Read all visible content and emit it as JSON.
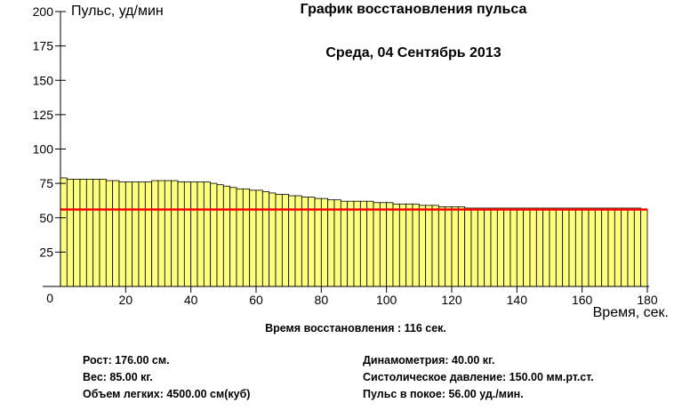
{
  "chart_data": {
    "type": "bar",
    "title": "График восстановления пульса",
    "subtitle": "Среда, 04 Сентябрь 2013",
    "ylabel": "Пульс, уд/мин",
    "xlabel": "Время, сек.",
    "ylim": [
      0,
      200
    ],
    "xlim": [
      0,
      180
    ],
    "yticks": [
      0,
      25,
      50,
      75,
      100,
      125,
      150,
      175,
      200
    ],
    "xticks": [
      20,
      40,
      60,
      80,
      100,
      120,
      140,
      160,
      180
    ],
    "bar_width_sec": 2,
    "series": [
      {
        "values": [
          79,
          78,
          78,
          78,
          78,
          78,
          78,
          77,
          77,
          76,
          76,
          76,
          76,
          76,
          77,
          77,
          77,
          77,
          76,
          76,
          76,
          76,
          76,
          75,
          74,
          73,
          72,
          71,
          71,
          70,
          70,
          69,
          68,
          67,
          67,
          66,
          66,
          65,
          65,
          64,
          64,
          63,
          63,
          62,
          62,
          62,
          62,
          62,
          61,
          61,
          61,
          60,
          60,
          60,
          60,
          59,
          59,
          59,
          58,
          58,
          58,
          58,
          57,
          57,
          57,
          57,
          57,
          57,
          57,
          57,
          57,
          57,
          57,
          57,
          57,
          57,
          57,
          57,
          57,
          57,
          57,
          57,
          57,
          57,
          57,
          57,
          57,
          57,
          57,
          56
        ]
      }
    ],
    "reference_line": {
      "value": 56,
      "color": "#ff0000"
    },
    "bar_color": "#ffff7f"
  },
  "info": {
    "recovery_time": "Время восстановления : 116 сек.",
    "height": "Рост: 176.00 см.",
    "weight": "Вес: 85.00 кг.",
    "lung_volume": "Объем легких: 4500.00 см(куб)",
    "dynamometry": "Динамометрия: 40.00 кг.",
    "systolic_pressure": "Систолическое давление: 150.00 мм.рт.ст.",
    "resting_pulse": "Пульс в покое: 56.00 уд./мин."
  }
}
